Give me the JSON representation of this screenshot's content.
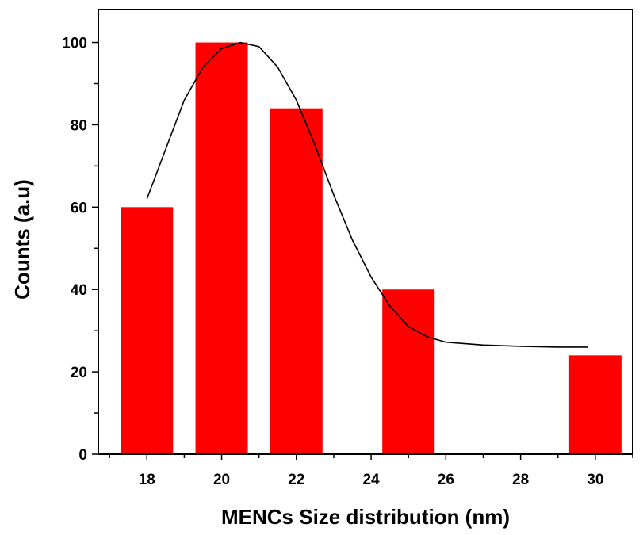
{
  "chart_data": {
    "type": "bar",
    "xlabel": "MENCs Size distribution (nm)",
    "ylabel": "Counts (a.u)",
    "xlim": [
      16.7,
      31
    ],
    "ylim": [
      0,
      108
    ],
    "x_ticks": [
      18,
      20,
      22,
      24,
      26,
      28,
      30
    ],
    "y_ticks": [
      0,
      20,
      40,
      60,
      80,
      100
    ],
    "grid": false,
    "legend": "none",
    "bar_color": "#ff0000",
    "fit_color": "#000000",
    "bars": [
      {
        "x": 18,
        "value": 60
      },
      {
        "x": 20,
        "value": 100
      },
      {
        "x": 22,
        "value": 84
      },
      {
        "x": 25,
        "value": 40
      },
      {
        "x": 30,
        "value": 24
      }
    ],
    "fit_curve": {
      "type": "gaussian-fit",
      "points": [
        [
          18.0,
          62
        ],
        [
          18.5,
          74
        ],
        [
          19.0,
          86
        ],
        [
          19.5,
          94
        ],
        [
          20.0,
          98.5
        ],
        [
          20.5,
          100
        ],
        [
          21.0,
          99
        ],
        [
          21.5,
          94
        ],
        [
          22.0,
          86
        ],
        [
          22.5,
          75
        ],
        [
          23.0,
          63
        ],
        [
          23.5,
          52
        ],
        [
          24.0,
          43
        ],
        [
          24.5,
          36
        ],
        [
          25.0,
          31
        ],
        [
          25.5,
          28.5
        ],
        [
          26.0,
          27.2
        ],
        [
          27.0,
          26.5
        ],
        [
          28.0,
          26.2
        ],
        [
          29.0,
          26.0
        ],
        [
          29.8,
          26.0
        ]
      ]
    }
  }
}
